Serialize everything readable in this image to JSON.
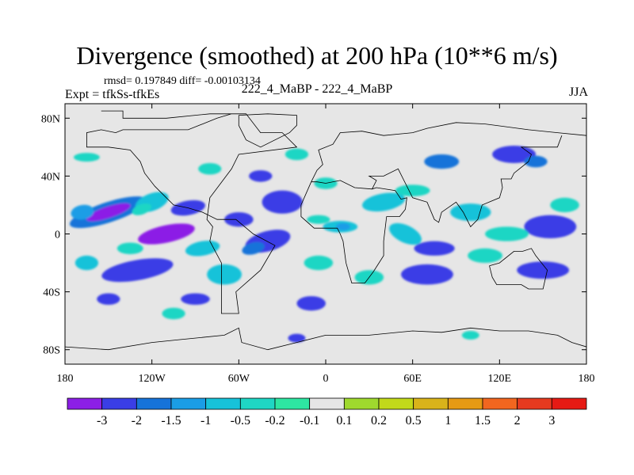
{
  "title": "Divergence (smoothed) at 200 hPa (10**6 m/s)",
  "stats_line": "rmsd= 0.197849 diff= -0.00103134",
  "expt_line": "Expt = tfkSs-tfkEs",
  "subtitle": "222_4_MaBP - 222_4_MaBP",
  "season": "JJA",
  "chart_data": {
    "type": "heatmap",
    "title": "Divergence (smoothed) at 200 hPa (10**6 m/s)",
    "projection": "cylindrical equidistant",
    "xlim": [
      -180,
      180
    ],
    "ylim": [
      -90,
      90
    ],
    "x_ticks": [
      {
        "value": -180,
        "label": "180"
      },
      {
        "value": -120,
        "label": "120W"
      },
      {
        "value": -60,
        "label": "60W"
      },
      {
        "value": 0,
        "label": "0"
      },
      {
        "value": 60,
        "label": "60E"
      },
      {
        "value": 120,
        "label": "120E"
      },
      {
        "value": 180,
        "label": "180"
      }
    ],
    "y_ticks": [
      {
        "value": 80,
        "label": "80N"
      },
      {
        "value": 40,
        "label": "40N"
      },
      {
        "value": 0,
        "label": "0"
      },
      {
        "value": -40,
        "label": "40S"
      },
      {
        "value": -80,
        "label": "80S"
      }
    ],
    "colorbar": {
      "levels": [
        "-3",
        "-2",
        "-1.5",
        "-1",
        "-0.5",
        "-0.2",
        "-0.1",
        "0.1",
        "0.2",
        "0.5",
        "1",
        "1.5",
        "2",
        "3"
      ],
      "colors": [
        "#8c1fe6",
        "#3a3ee6",
        "#1673d9",
        "#1a9de6",
        "#17c2d9",
        "#1fd6c4",
        "#2ee6a2",
        "#e6e6e6",
        "#9fd92e",
        "#c2d91a",
        "#d9b31a",
        "#e69a14",
        "#f2661f",
        "#e63a1f",
        "#e61a14"
      ]
    },
    "background_value_range": [
      -0.1,
      0.1
    ],
    "regions": [
      {
        "lon": -150,
        "lat": 15,
        "rx": 28,
        "ry": 7,
        "level": 2,
        "rot": -18
      },
      {
        "lon": -150,
        "lat": 15,
        "rx": 16,
        "ry": 4,
        "level": 0,
        "rot": -18
      },
      {
        "lon": -168,
        "lat": 15,
        "rx": 8,
        "ry": 5,
        "level": 3,
        "rot": -10
      },
      {
        "lon": -120,
        "lat": 22,
        "rx": 12,
        "ry": 6,
        "level": 4,
        "rot": -20
      },
      {
        "lon": -127,
        "lat": 17,
        "rx": 7,
        "ry": 3.5,
        "level": 5,
        "rot": -20
      },
      {
        "lon": -95,
        "lat": 18,
        "rx": 12,
        "ry": 5,
        "level": 1,
        "rot": -10
      },
      {
        "lon": -60,
        "lat": 10,
        "rx": 10,
        "ry": 5,
        "level": 1,
        "rot": 0
      },
      {
        "lon": -30,
        "lat": 22,
        "rx": 14,
        "ry": 8,
        "level": 1,
        "rot": 0
      },
      {
        "lon": -110,
        "lat": 0,
        "rx": 20,
        "ry": 6,
        "level": 0,
        "rot": -12
      },
      {
        "lon": -40,
        "lat": -5,
        "rx": 16,
        "ry": 7,
        "level": 1,
        "rot": -15
      },
      {
        "lon": -50,
        "lat": -10,
        "rx": 8,
        "ry": 4,
        "level": 2,
        "rot": -15
      },
      {
        "lon": -130,
        "lat": -25,
        "rx": 25,
        "ry": 7,
        "level": 1,
        "rot": -10
      },
      {
        "lon": -70,
        "lat": -28,
        "rx": 12,
        "ry": 7,
        "level": 4,
        "rot": 0
      },
      {
        "lon": -85,
        "lat": -10,
        "rx": 12,
        "ry": 5,
        "level": 4,
        "rot": -10
      },
      {
        "lon": -150,
        "lat": -45,
        "rx": 8,
        "ry": 4,
        "level": 1,
        "rot": 0
      },
      {
        "lon": -10,
        "lat": -48,
        "rx": 10,
        "ry": 5,
        "level": 1,
        "rot": 0
      },
      {
        "lon": -45,
        "lat": 40,
        "rx": 8,
        "ry": 4,
        "level": 1,
        "rot": 0
      },
      {
        "lon": -165,
        "lat": 53,
        "rx": 9,
        "ry": 3,
        "level": 5,
        "rot": 0
      },
      {
        "lon": -165,
        "lat": -20,
        "rx": 8,
        "ry": 5,
        "level": 4,
        "rot": 0
      },
      {
        "lon": -135,
        "lat": -10,
        "rx": 9,
        "ry": 4,
        "level": 5,
        "rot": 0
      },
      {
        "lon": -90,
        "lat": -45,
        "rx": 10,
        "ry": 4,
        "level": 1,
        "rot": 0
      },
      {
        "lon": -20,
        "lat": -72,
        "rx": 6,
        "ry": 3,
        "level": 1,
        "rot": 0
      },
      {
        "lon": 10,
        "lat": 5,
        "rx": 12,
        "ry": 4,
        "level": 4,
        "rot": 0
      },
      {
        "lon": 12,
        "lat": 5,
        "rx": 5,
        "ry": 2.5,
        "level": 3,
        "rot": 0
      },
      {
        "lon": 40,
        "lat": 22,
        "rx": 15,
        "ry": 6,
        "level": 4,
        "rot": -10
      },
      {
        "lon": 55,
        "lat": 0,
        "rx": 12,
        "ry": 6,
        "level": 4,
        "rot": 25
      },
      {
        "lon": 75,
        "lat": -10,
        "rx": 14,
        "ry": 5,
        "level": 1,
        "rot": 0
      },
      {
        "lon": 70,
        "lat": -28,
        "rx": 18,
        "ry": 7,
        "level": 1,
        "rot": 0
      },
      {
        "lon": 100,
        "lat": 15,
        "rx": 14,
        "ry": 6,
        "level": 4,
        "rot": 0
      },
      {
        "lon": 155,
        "lat": 5,
        "rx": 18,
        "ry": 8,
        "level": 1,
        "rot": 0
      },
      {
        "lon": 150,
        "lat": -25,
        "rx": 18,
        "ry": 6,
        "level": 1,
        "rot": 0
      },
      {
        "lon": 80,
        "lat": 50,
        "rx": 12,
        "ry": 5,
        "level": 2,
        "rot": 0
      },
      {
        "lon": 130,
        "lat": 55,
        "rx": 15,
        "ry": 6,
        "level": 1,
        "rot": 0
      },
      {
        "lon": 145,
        "lat": 50,
        "rx": 8,
        "ry": 4,
        "level": 2,
        "rot": 0
      },
      {
        "lon": 60,
        "lat": 30,
        "rx": 12,
        "ry": 4,
        "level": 5,
        "rot": 0
      },
      {
        "lon": 125,
        "lat": 0,
        "rx": 15,
        "ry": 5,
        "level": 5,
        "rot": 0
      },
      {
        "lon": 110,
        "lat": -15,
        "rx": 12,
        "ry": 5,
        "level": 5,
        "rot": 0
      },
      {
        "lon": 165,
        "lat": 20,
        "rx": 10,
        "ry": 5,
        "level": 5,
        "rot": 0
      },
      {
        "lon": 30,
        "lat": -30,
        "rx": 10,
        "ry": 5,
        "level": 5,
        "rot": 0
      },
      {
        "lon": -5,
        "lat": -20,
        "rx": 10,
        "ry": 5,
        "level": 5,
        "rot": 0
      },
      {
        "lon": 100,
        "lat": -70,
        "rx": 6,
        "ry": 3,
        "level": 5,
        "rot": 0
      },
      {
        "lon": -80,
        "lat": 45,
        "rx": 8,
        "ry": 4,
        "level": 5,
        "rot": 0
      },
      {
        "lon": -20,
        "lat": 55,
        "rx": 8,
        "ry": 4,
        "level": 5,
        "rot": 0
      },
      {
        "lon": 0,
        "lat": 35,
        "rx": 8,
        "ry": 4,
        "level": 5,
        "rot": 0
      },
      {
        "lon": -105,
        "lat": -55,
        "rx": 8,
        "ry": 4,
        "level": 5,
        "rot": 0
      },
      {
        "lon": -5,
        "lat": 10,
        "rx": 8,
        "ry": 3,
        "level": 5,
        "rot": 0
      }
    ],
    "coastline": [
      [
        [
          -155,
          85
        ],
        [
          -140,
          85
        ],
        [
          -140,
          80
        ],
        [
          -110,
          80
        ],
        [
          -80,
          83
        ],
        [
          -55,
          83
        ],
        [
          -45,
          70
        ],
        [
          -30,
          70
        ],
        [
          -20,
          60
        ],
        [
          -60,
          55
        ],
        [
          -65,
          45
        ],
        [
          -80,
          25
        ],
        [
          -82,
          10
        ],
        [
          -78,
          5
        ],
        [
          -80,
          -5
        ],
        [
          -72,
          -20
        ],
        [
          -72,
          -55
        ],
        [
          -60,
          -55
        ],
        [
          -62,
          -40
        ],
        [
          -45,
          -25
        ],
        [
          -35,
          -8
        ],
        [
          -50,
          0
        ],
        [
          -62,
          10
        ],
        [
          -75,
          10
        ],
        [
          -85,
          15
        ],
        [
          -95,
          18
        ],
        [
          -105,
          20
        ],
        [
          -110,
          25
        ],
        [
          -118,
          33
        ],
        [
          -125,
          42
        ],
        [
          -128,
          50
        ],
        [
          -135,
          58
        ],
        [
          -150,
          60
        ],
        [
          -165,
          60
        ],
        [
          -165,
          70
        ],
        [
          -155,
          72
        ],
        [
          -145,
          70
        ],
        [
          -140,
          72
        ],
        [
          -120,
          72
        ],
        [
          -95,
          72
        ],
        [
          -75,
          80
        ],
        [
          -65,
          83
        ]
      ],
      [
        [
          -10,
          36
        ],
        [
          -6,
          44
        ],
        [
          -2,
          48
        ],
        [
          -5,
          58
        ],
        [
          5,
          62
        ],
        [
          10,
          70
        ],
        [
          25,
          71
        ],
        [
          40,
          68
        ],
        [
          60,
          70
        ],
        [
          70,
          73
        ],
        [
          90,
          77
        ],
        [
          110,
          76
        ],
        [
          140,
          72
        ],
        [
          160,
          70
        ],
        [
          180,
          68
        ]
      ],
      [
        [
          -10,
          36
        ],
        [
          -17,
          20
        ],
        [
          -17,
          12
        ],
        [
          -8,
          4
        ],
        [
          8,
          4
        ],
        [
          10,
          0
        ],
        [
          12,
          -5
        ],
        [
          14,
          -20
        ],
        [
          18,
          -34
        ],
        [
          27,
          -34
        ],
        [
          33,
          -26
        ],
        [
          40,
          -15
        ],
        [
          40,
          -5
        ],
        [
          42,
          12
        ],
        [
          51,
          12
        ],
        [
          55,
          17
        ],
        [
          56,
          25
        ],
        [
          52,
          24
        ],
        [
          48,
          30
        ],
        [
          35,
          32
        ],
        [
          32,
          31
        ],
        [
          20,
          32
        ],
        [
          10,
          37
        ],
        [
          0,
          35
        ],
        [
          -6,
          36
        ],
        [
          -10,
          36
        ]
      ],
      [
        [
          32,
          31
        ],
        [
          35,
          37
        ],
        [
          30,
          40
        ],
        [
          40,
          40
        ],
        [
          50,
          45
        ],
        [
          60,
          25
        ],
        [
          70,
          22
        ],
        [
          75,
          10
        ],
        [
          78,
          8
        ],
        [
          80,
          15
        ],
        [
          90,
          22
        ],
        [
          95,
          15
        ],
        [
          100,
          5
        ],
        [
          105,
          10
        ],
        [
          108,
          20
        ],
        [
          120,
          25
        ],
        [
          122,
          32
        ],
        [
          121,
          38
        ],
        [
          128,
          38
        ],
        [
          130,
          42
        ],
        [
          140,
          50
        ],
        [
          142,
          55
        ],
        [
          135,
          60
        ],
        [
          150,
          60
        ],
        [
          160,
          60
        ],
        [
          163,
          68
        ]
      ],
      [
        [
          113,
          -22
        ],
        [
          120,
          -20
        ],
        [
          130,
          -12
        ],
        [
          136,
          -12
        ],
        [
          142,
          -10
        ],
        [
          145,
          -15
        ],
        [
          153,
          -25
        ],
        [
          150,
          -38
        ],
        [
          140,
          -38
        ],
        [
          135,
          -35
        ],
        [
          118,
          -35
        ],
        [
          115,
          -30
        ],
        [
          113,
          -22
        ]
      ],
      [
        [
          -180,
          -78
        ],
        [
          -150,
          -80
        ],
        [
          -120,
          -75
        ],
        [
          -100,
          -73
        ],
        [
          -70,
          -70
        ],
        [
          -60,
          -65
        ],
        [
          -58,
          -75
        ],
        [
          -40,
          -80
        ],
        [
          -20,
          -75
        ],
        [
          0,
          -70
        ],
        [
          30,
          -70
        ],
        [
          60,
          -67
        ],
        [
          80,
          -68
        ],
        [
          100,
          -65
        ],
        [
          120,
          -67
        ],
        [
          140,
          -67
        ],
        [
          160,
          -70
        ],
        [
          170,
          -75
        ],
        [
          180,
          -78
        ]
      ],
      [
        [
          -60,
          82
        ],
        [
          -40,
          83
        ],
        [
          -20,
          82
        ],
        [
          -20,
          75
        ],
        [
          -25,
          70
        ],
        [
          -45,
          60
        ],
        [
          -55,
          65
        ],
        [
          -60,
          75
        ],
        [
          -60,
          82
        ]
      ]
    ]
  }
}
